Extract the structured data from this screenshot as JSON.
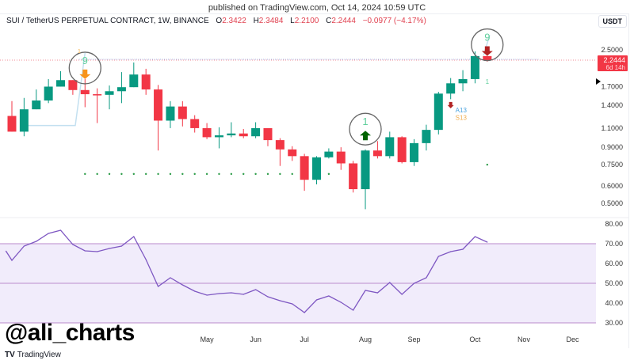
{
  "published": "published on TradingView.com, Oct 14, 2024 10:59 UTC",
  "header": {
    "symbol": "SUI / TetherUS PERPETUAL CONTRACT, 1W, BINANCE",
    "o_label": "O",
    "o": "2.3422",
    "h_label": "H",
    "h": "2.3484",
    "l_label": "L",
    "l": "2.2100",
    "c_label": "C",
    "c": "2.2444",
    "change": "−0.0977 (−4.17%)"
  },
  "currency_button": "USDT",
  "watermark": "@ali_charts",
  "footer_brand": "TradingView",
  "footer_logo_icon": "tradingview-logo-icon",
  "colors": {
    "up": "#089981",
    "down": "#f23645",
    "rsi": "#7e57c2",
    "rsi_band": "#f1ecfb",
    "rsi_lines": "#c69fd5",
    "price_tag": "#f23645"
  },
  "chart_data": [
    {
      "type": "candlestick",
      "scale": "log",
      "ylim": [
        0.45,
        2.7
      ],
      "y_ticks": [
        "2.5000",
        "1.7000",
        "1.4000",
        "1.1000",
        "0.9000",
        "0.7500",
        "0.6000",
        "0.5000"
      ],
      "y_tick_values": [
        2.5,
        1.7,
        1.4,
        1.1,
        0.9,
        0.75,
        0.6,
        0.5
      ],
      "x_ticks": [
        "May",
        "Jun",
        "Jul",
        "Aug",
        "Sep",
        "Oct",
        "Nov",
        "Dec"
      ],
      "x_tick_candle_index": [
        16,
        20,
        24,
        29,
        33,
        38,
        42,
        46
      ],
      "last_price_tag": {
        "price": "2.2444",
        "countdown": "6d 14h"
      },
      "candles_ohlc": [
        [
          1.25,
          1.46,
          1.06,
          1.06
        ],
        [
          1.06,
          1.51,
          1.01,
          1.34
        ],
        [
          1.34,
          1.65,
          1.34,
          1.47
        ],
        [
          1.47,
          1.84,
          1.43,
          1.7
        ],
        [
          1.7,
          2.0,
          1.7,
          1.82
        ],
        [
          1.82,
          1.82,
          1.56,
          1.64
        ],
        [
          1.64,
          1.84,
          1.37,
          1.57
        ],
        [
          1.57,
          1.67,
          1.16,
          1.56
        ],
        [
          1.56,
          1.72,
          1.34,
          1.62
        ],
        [
          1.62,
          1.98,
          1.43,
          1.69
        ],
        [
          1.69,
          2.19,
          1.69,
          1.93
        ],
        [
          1.93,
          2.05,
          1.56,
          1.65
        ],
        [
          1.65,
          1.73,
          0.87,
          1.19
        ],
        [
          1.19,
          1.46,
          1.1,
          1.38
        ],
        [
          1.38,
          1.46,
          1.12,
          1.21
        ],
        [
          1.21,
          1.26,
          1.05,
          1.1
        ],
        [
          1.1,
          1.16,
          0.98,
          1.0
        ],
        [
          1.0,
          1.11,
          0.89,
          1.02
        ],
        [
          1.02,
          1.17,
          1.0,
          1.04
        ],
        [
          1.04,
          1.09,
          0.99,
          1.01
        ],
        [
          1.01,
          1.17,
          0.99,
          1.1
        ],
        [
          1.1,
          1.1,
          0.91,
          0.97
        ],
        [
          0.97,
          0.99,
          0.74,
          0.88
        ],
        [
          0.88,
          0.91,
          0.78,
          0.82
        ],
        [
          0.82,
          0.84,
          0.57,
          0.64
        ],
        [
          0.64,
          0.82,
          0.61,
          0.81
        ],
        [
          0.81,
          0.89,
          0.8,
          0.86
        ],
        [
          0.86,
          0.9,
          0.71,
          0.76
        ],
        [
          0.76,
          0.78,
          0.56,
          0.58
        ],
        [
          0.58,
          0.88,
          0.47,
          0.87
        ],
        [
          0.87,
          0.96,
          0.8,
          0.82
        ],
        [
          0.82,
          1.06,
          0.8,
          1.0
        ],
        [
          1.0,
          1.01,
          0.76,
          0.77
        ],
        [
          0.77,
          0.98,
          0.74,
          0.94
        ],
        [
          0.94,
          1.14,
          0.87,
          1.08
        ],
        [
          1.08,
          1.61,
          1.03,
          1.58
        ],
        [
          1.58,
          1.86,
          1.49,
          1.76
        ],
        [
          1.76,
          2.02,
          1.62,
          1.84
        ],
        [
          1.84,
          2.46,
          1.76,
          2.3422
        ],
        [
          2.3422,
          2.3484,
          2.21,
          2.2444
        ]
      ],
      "annotations": [
        {
          "text": "9",
          "candle_index": 6,
          "circled": true,
          "arrow": "down",
          "arrow_color": "#f7931a"
        },
        {
          "text": "1",
          "candle_index": 29,
          "circled": true,
          "arrow": "up",
          "arrow_color": "#006400"
        },
        {
          "text": "9",
          "candle_index": 39,
          "circled": true,
          "arrow": "down",
          "arrow_color": "#b22222"
        },
        {
          "text": "1",
          "candle_index": 39,
          "circled": false
        },
        {
          "text": "A13",
          "candle_index": 36,
          "color": "#4aa3df"
        },
        {
          "text": "S13",
          "candle_index": 36,
          "color": "#f0ad4e"
        }
      ],
      "support_dots_price": 0.68,
      "support_dots_candles": [
        6,
        26
      ],
      "resistance_line_price": 2.2444
    },
    {
      "type": "line",
      "name": "RSI",
      "ylim": [
        28,
        84
      ],
      "y_ticks": [
        "80.00",
        "70.00",
        "60.00",
        "50.00",
        "40.00",
        "30.00"
      ],
      "y_tick_values": [
        80,
        70,
        60,
        50,
        40,
        30
      ],
      "bands": [
        30,
        50,
        70
      ],
      "values_leading": 66.4,
      "values": [
        61.6,
        68.8,
        71.2,
        75.2,
        76.8,
        69.6,
        66.4,
        66.0,
        67.6,
        68.8,
        73.6,
        62.0,
        48.4,
        52.8,
        49.2,
        46.0,
        44.0,
        44.8,
        45.2,
        44.4,
        46.8,
        43.2,
        41.2,
        39.6,
        35.2,
        41.6,
        43.6,
        40.4,
        36.4,
        46.4,
        45.2,
        50.4,
        44.4,
        50.0,
        52.8,
        63.6,
        66.0,
        67.2,
        73.6,
        70.8
      ]
    }
  ]
}
